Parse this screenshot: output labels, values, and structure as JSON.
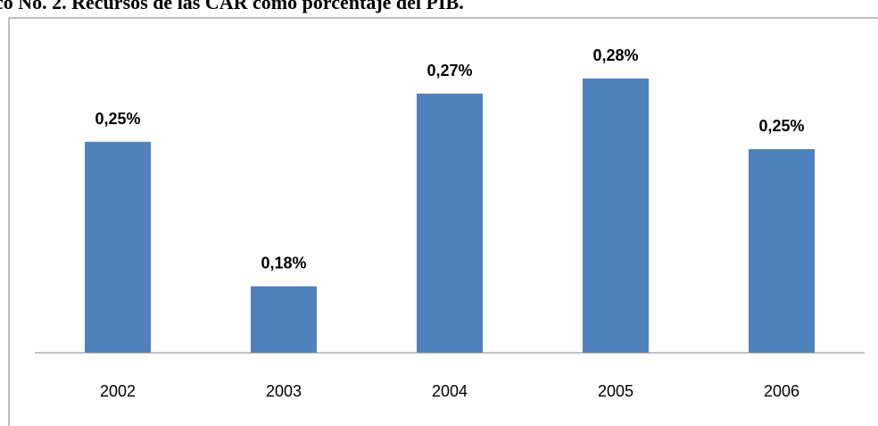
{
  "chart_data": {
    "type": "bar",
    "title": "co No. 2. Recursos de las CAR como porcentaje del PIB.",
    "categories": [
      "2002",
      "2003",
      "2004",
      "2005",
      "2006"
    ],
    "values": [
      0.2495,
      0.18,
      0.2727,
      0.28,
      0.246
    ],
    "value_labels": [
      "0,25%",
      "0,18%",
      "0,27%",
      "0,28%",
      "0,25%"
    ],
    "color": "#4f81bd",
    "ylim": [
      0.148,
      0.31
    ]
  }
}
